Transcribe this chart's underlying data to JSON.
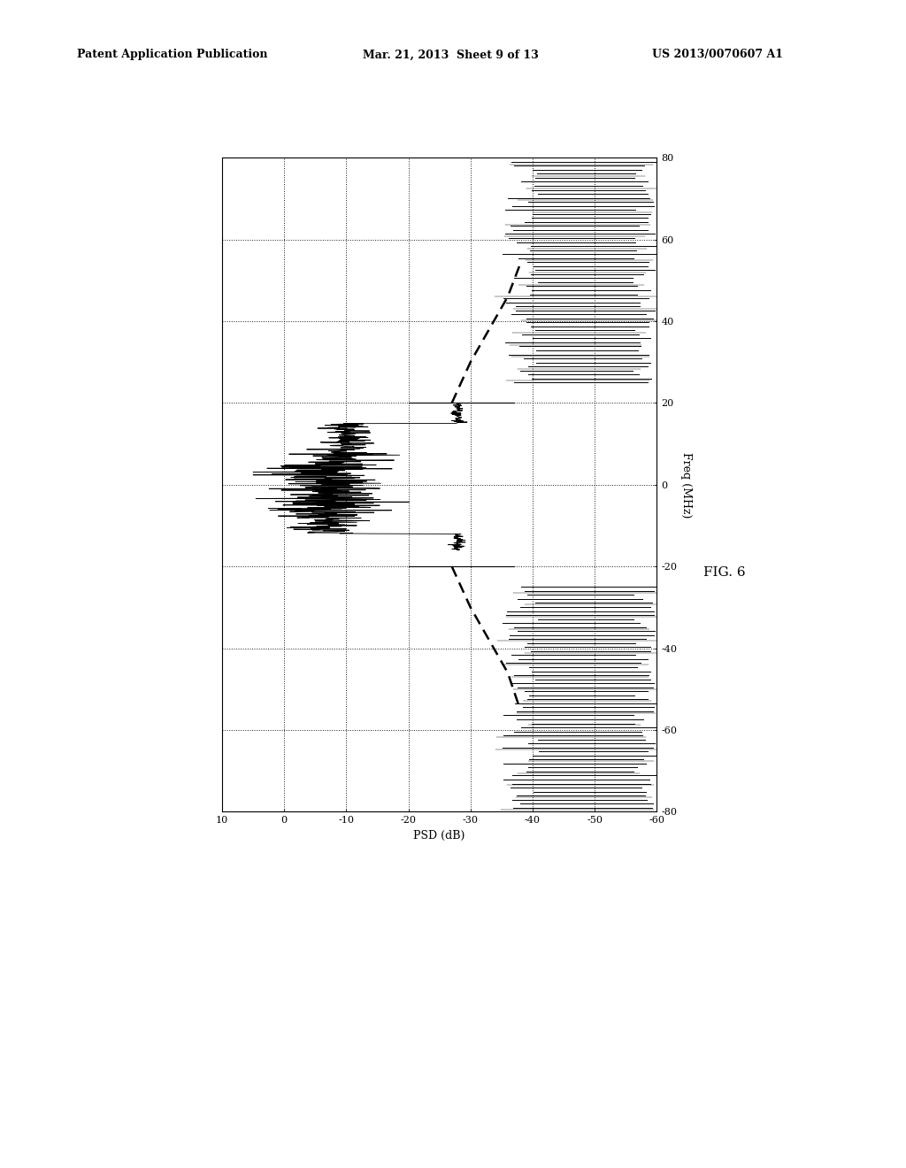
{
  "header_left": "Patent Application Publication",
  "header_center": "Mar. 21, 2013  Sheet 9 of 13",
  "header_right": "US 2013/0070607 A1",
  "fig_label": "FIG. 6",
  "xlabel": "PSD (dB)",
  "ylabel": "Freq (MHz)",
  "psd_ticks": [
    10,
    0,
    -10,
    -20,
    -30,
    -40,
    -50,
    -60
  ],
  "freq_ticks": [
    -80,
    -60,
    -40,
    -20,
    0,
    20,
    40,
    60,
    80
  ],
  "background": "#ffffff"
}
